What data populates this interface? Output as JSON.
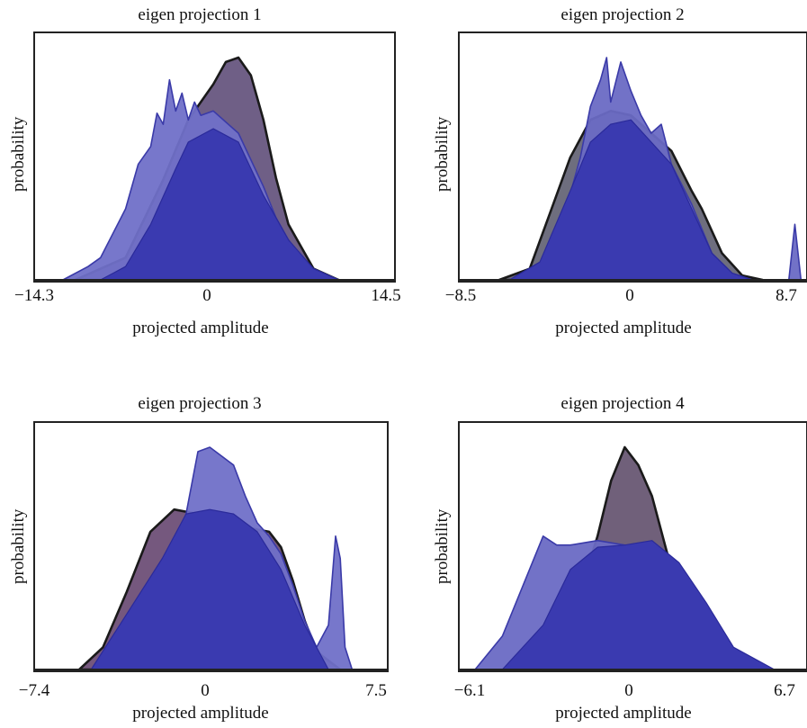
{
  "chart_data": [
    {
      "type": "area",
      "title": "eigen projection 1",
      "xlabel": "projected amplitude",
      "ylabel": "probability",
      "xlim": [
        -14.3,
        14.5
      ],
      "xticks": [
        "−14.3",
        "0",
        "14.5"
      ],
      "xtick_values": [
        -14.3,
        0,
        14.5
      ],
      "colors": {
        "dark": "#6f5f86",
        "light": "#7070c8",
        "blue": "#3a3ab0"
      },
      "series": [
        {
          "role": "dark",
          "x": [
            -11,
            -7,
            -4,
            -2,
            0,
            1,
            2,
            3,
            4,
            5,
            6,
            8,
            10
          ],
          "values": [
            0.0,
            0.1,
            0.45,
            0.72,
            0.88,
            0.98,
            1.0,
            0.92,
            0.72,
            0.46,
            0.25,
            0.05,
            0.0
          ]
        },
        {
          "role": "light",
          "x": [
            -12,
            -10,
            -9,
            -7,
            -6,
            -5,
            -4.5,
            -4,
            -3.5,
            -3,
            -2.5,
            -2,
            -1.5,
            -1,
            0,
            2,
            4,
            5,
            6,
            7,
            8,
            10
          ],
          "values": [
            0.0,
            0.06,
            0.1,
            0.32,
            0.52,
            0.6,
            0.75,
            0.7,
            0.9,
            0.76,
            0.84,
            0.72,
            0.8,
            0.74,
            0.76,
            0.66,
            0.42,
            0.28,
            0.18,
            0.1,
            0.05,
            0.0
          ]
        },
        {
          "role": "blue",
          "x": [
            -9,
            -7,
            -5,
            -3,
            -2,
            0,
            2,
            3,
            4,
            5,
            6,
            8,
            10
          ],
          "values": [
            0.0,
            0.06,
            0.25,
            0.5,
            0.62,
            0.68,
            0.62,
            0.5,
            0.38,
            0.28,
            0.18,
            0.05,
            0.0
          ]
        }
      ]
    },
    {
      "type": "area",
      "title": "eigen projection 2",
      "xlabel": "projected amplitude",
      "ylabel": "probability",
      "xlim": [
        -8.5,
        8.7
      ],
      "xticks": [
        "−8.5",
        "0",
        "8.7"
      ],
      "xtick_values": [
        -8.5,
        0,
        8.7
      ],
      "colors": {
        "dark": "#6e6e7e",
        "light": "#6a6ac4",
        "blue": "#3a3ab0"
      },
      "series": [
        {
          "role": "dark",
          "x": [
            -6.5,
            -5,
            -4,
            -3,
            -2,
            -1,
            0,
            1,
            2,
            3,
            3.5,
            4.5,
            5.5,
            6.5
          ],
          "values": [
            0.0,
            0.05,
            0.3,
            0.55,
            0.72,
            0.76,
            0.74,
            0.66,
            0.58,
            0.4,
            0.32,
            0.12,
            0.02,
            0.0
          ]
        },
        {
          "role": "light",
          "x": [
            -5.5,
            -4.5,
            -3.5,
            -2.5,
            -2,
            -1.5,
            -1.2,
            -1,
            -0.5,
            0,
            0.5,
            1,
            1.5,
            2,
            3,
            4,
            5,
            6,
            7.8,
            8.1,
            8.4
          ],
          "values": [
            0.0,
            0.04,
            0.22,
            0.55,
            0.78,
            0.9,
            1.0,
            0.8,
            0.98,
            0.85,
            0.74,
            0.66,
            0.7,
            0.52,
            0.34,
            0.12,
            0.03,
            0.0,
            0.0,
            0.25,
            0.0
          ]
        },
        {
          "role": "blue",
          "x": [
            -6,
            -4.5,
            -3,
            -2,
            -1,
            0,
            1,
            2,
            3,
            4,
            5,
            6
          ],
          "values": [
            0.0,
            0.08,
            0.4,
            0.62,
            0.7,
            0.72,
            0.62,
            0.52,
            0.32,
            0.12,
            0.03,
            0.0
          ]
        }
      ]
    },
    {
      "type": "area",
      "title": "eigen projection 3",
      "xlabel": "projected amplitude",
      "ylabel": "probability",
      "xlim": [
        -7.4,
        7.5
      ],
      "xticks": [
        "−7.4",
        "0",
        "7.5"
      ],
      "xtick_values": [
        -7.4,
        0,
        7.5
      ],
      "colors": {
        "dark": "#75587e",
        "light": "#7070c8",
        "blue": "#3a3ab0"
      },
      "series": [
        {
          "role": "dark",
          "x": [
            -5.5,
            -4.5,
            -3.5,
            -2.5,
            -1.5,
            -0.5,
            0.5,
            1.5,
            2.5,
            3,
            3.5,
            4,
            4.5,
            5.5
          ],
          "values": [
            0.0,
            0.1,
            0.35,
            0.62,
            0.72,
            0.7,
            0.66,
            0.64,
            0.62,
            0.55,
            0.4,
            0.22,
            0.08,
            0.0
          ]
        },
        {
          "role": "light",
          "x": [
            -5,
            -4,
            -2,
            -1,
            -0.5,
            0,
            0.5,
            1,
            1.5,
            2,
            2.5,
            3,
            3.5,
            4,
            4.5,
            5,
            5.3,
            5.5,
            5.7,
            6
          ],
          "values": [
            0.0,
            0.05,
            0.4,
            0.7,
            0.98,
            1.0,
            0.96,
            0.92,
            0.78,
            0.66,
            0.6,
            0.52,
            0.38,
            0.22,
            0.1,
            0.2,
            0.6,
            0.5,
            0.1,
            0.0
          ]
        },
        {
          "role": "blue",
          "x": [
            -5,
            -3.5,
            -2,
            -1,
            0,
            1,
            2,
            3,
            4,
            5
          ],
          "values": [
            0.0,
            0.25,
            0.5,
            0.7,
            0.72,
            0.7,
            0.62,
            0.45,
            0.2,
            0.0
          ]
        }
      ]
    },
    {
      "type": "area",
      "title": "eigen projection 4",
      "xlabel": "projected amplitude",
      "ylabel": "probability",
      "xlim": [
        -6.1,
        6.7
      ],
      "xticks": [
        "−6.1",
        "0",
        "6.7"
      ],
      "xtick_values": [
        -6.1,
        0,
        6.7
      ],
      "colors": {
        "dark": "#70607a",
        "light": "#6a6ac4",
        "blue": "#3a3ab0"
      },
      "series": [
        {
          "role": "dark",
          "x": [
            -3,
            -2,
            -1,
            -0.5,
            0,
            0.5,
            1,
            1.5,
            2,
            3,
            4
          ],
          "values": [
            0.0,
            0.2,
            0.6,
            0.85,
            1.0,
            0.92,
            0.78,
            0.55,
            0.32,
            0.1,
            0.0
          ]
        },
        {
          "role": "light",
          "x": [
            -5.5,
            -4.5,
            -3.5,
            -3,
            -2.5,
            -2,
            -1,
            0,
            1,
            2,
            3,
            4,
            5.5
          ],
          "values": [
            0.0,
            0.15,
            0.45,
            0.6,
            0.56,
            0.56,
            0.58,
            0.56,
            0.5,
            0.35,
            0.15,
            0.04,
            0.0
          ]
        },
        {
          "role": "blue",
          "x": [
            -4.5,
            -3,
            -2,
            -1,
            0,
            1,
            2,
            3,
            4,
            5.5
          ],
          "values": [
            0.0,
            0.2,
            0.45,
            0.55,
            0.56,
            0.58,
            0.48,
            0.3,
            0.1,
            0.0
          ]
        }
      ]
    }
  ]
}
